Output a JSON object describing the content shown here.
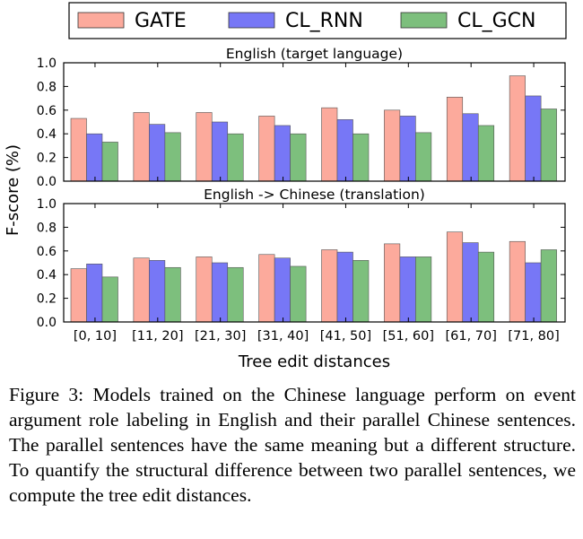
{
  "chart_data": {
    "type": "bar",
    "ylabel": "F-score (%)",
    "xlabel": "Tree edit distances",
    "categories": [
      "[0, 10]",
      "[11, 20]",
      "[21, 30]",
      "[31, 40]",
      "[41, 50]",
      "[51, 60]",
      "[61, 70]",
      "[71, 80]"
    ],
    "legend": [
      {
        "name": "GATE",
        "color": "#fcaa9c"
      },
      {
        "name": "CL_RNN",
        "color": "#7777f6"
      },
      {
        "name": "CL_GCN",
        "color": "#7dbf7d"
      }
    ],
    "ylim": [
      0.0,
      1.0
    ],
    "yticks": [
      "0.0",
      "0.2",
      "0.4",
      "0.6",
      "0.8",
      "1.0"
    ],
    "legend_position": "top",
    "grid": false,
    "panels": [
      {
        "title": "English (target language)",
        "series": [
          {
            "name": "GATE",
            "values": [
              0.53,
              0.58,
              0.58,
              0.55,
              0.62,
              0.6,
              0.71,
              0.89
            ]
          },
          {
            "name": "CL_RNN",
            "values": [
              0.4,
              0.48,
              0.5,
              0.47,
              0.52,
              0.55,
              0.57,
              0.72
            ]
          },
          {
            "name": "CL_GCN",
            "values": [
              0.33,
              0.41,
              0.4,
              0.4,
              0.4,
              0.41,
              0.47,
              0.61
            ]
          }
        ]
      },
      {
        "title": "English -> Chinese (translation)",
        "series": [
          {
            "name": "GATE",
            "values": [
              0.45,
              0.54,
              0.55,
              0.57,
              0.61,
              0.66,
              0.76,
              0.68
            ]
          },
          {
            "name": "CL_RNN",
            "values": [
              0.49,
              0.52,
              0.5,
              0.54,
              0.59,
              0.55,
              0.67,
              0.5
            ]
          },
          {
            "name": "CL_GCN",
            "values": [
              0.38,
              0.46,
              0.46,
              0.47,
              0.52,
              0.55,
              0.59,
              0.61
            ]
          }
        ]
      }
    ]
  },
  "caption": "Figure 3: Models trained on the Chinese language perform on event argument role labeling in English and their parallel Chinese sentences. The parallel sentences have the same meaning but a different structure. To quantify the structural difference between two parallel sentences, we compute the tree edit distances."
}
